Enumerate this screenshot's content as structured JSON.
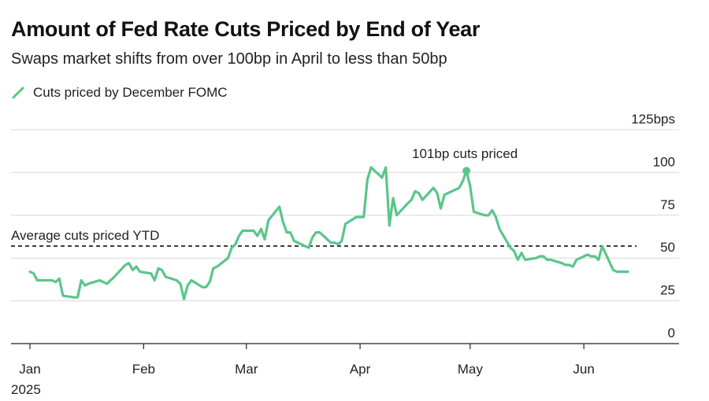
{
  "chart_data": {
    "type": "line",
    "title": "Amount of Fed Rate Cuts Priced by End of Year",
    "subtitle": "Swaps market shifts from over 100bp in April to less than 50bp",
    "xlabel": "",
    "ylabel": "",
    "ylim": [
      0,
      125
    ],
    "y_ticks": [
      0,
      25,
      50,
      75,
      100,
      125
    ],
    "y_tick_labels": [
      "0",
      "25",
      "50",
      "75",
      "100",
      "125bps"
    ],
    "x_ticks": [
      {
        "date": "2025-01-01",
        "label": "Jan"
      },
      {
        "date": "2025-02-01",
        "label": "Feb"
      },
      {
        "date": "2025-03-01",
        "label": "Mar"
      },
      {
        "date": "2025-04-01",
        "label": "Apr"
      },
      {
        "date": "2025-05-01",
        "label": "May"
      },
      {
        "date": "2025-06-01",
        "label": "Jun"
      }
    ],
    "year_label": "2025",
    "series": [
      {
        "name": "Cuts priced by December FOMC",
        "color": "#5cc58a",
        "points": [
          [
            "2025-01-01",
            42
          ],
          [
            "2025-01-02",
            41
          ],
          [
            "2025-01-03",
            37
          ],
          [
            "2025-01-06",
            37
          ],
          [
            "2025-01-07",
            37
          ],
          [
            "2025-01-08",
            36
          ],
          [
            "2025-01-09",
            38
          ],
          [
            "2025-01-10",
            28
          ],
          [
            "2025-01-13",
            27
          ],
          [
            "2025-01-14",
            27
          ],
          [
            "2025-01-15",
            37
          ],
          [
            "2025-01-16",
            34
          ],
          [
            "2025-01-17",
            35
          ],
          [
            "2025-01-20",
            37
          ],
          [
            "2025-01-21",
            36
          ],
          [
            "2025-01-22",
            35
          ],
          [
            "2025-01-23",
            37
          ],
          [
            "2025-01-24",
            39
          ],
          [
            "2025-01-27",
            46
          ],
          [
            "2025-01-28",
            47
          ],
          [
            "2025-01-29",
            43
          ],
          [
            "2025-01-30",
            45
          ],
          [
            "2025-01-31",
            42
          ],
          [
            "2025-02-03",
            41
          ],
          [
            "2025-02-04",
            37
          ],
          [
            "2025-02-05",
            44
          ],
          [
            "2025-02-06",
            43
          ],
          [
            "2025-02-07",
            39
          ],
          [
            "2025-02-10",
            37
          ],
          [
            "2025-02-11",
            35
          ],
          [
            "2025-02-12",
            26
          ],
          [
            "2025-02-13",
            34
          ],
          [
            "2025-02-14",
            37
          ],
          [
            "2025-02-17",
            33
          ],
          [
            "2025-02-18",
            33
          ],
          [
            "2025-02-19",
            36
          ],
          [
            "2025-02-20",
            44
          ],
          [
            "2025-02-21",
            45
          ],
          [
            "2025-02-24",
            50
          ],
          [
            "2025-02-25",
            56
          ],
          [
            "2025-02-26",
            58
          ],
          [
            "2025-02-27",
            63
          ],
          [
            "2025-02-28",
            66
          ],
          [
            "2025-03-03",
            66
          ],
          [
            "2025-03-04",
            63
          ],
          [
            "2025-03-05",
            67
          ],
          [
            "2025-03-06",
            61
          ],
          [
            "2025-03-07",
            72
          ],
          [
            "2025-03-10",
            80
          ],
          [
            "2025-03-11",
            71
          ],
          [
            "2025-03-12",
            65
          ],
          [
            "2025-03-13",
            65
          ],
          [
            "2025-03-14",
            60
          ],
          [
            "2025-03-17",
            57
          ],
          [
            "2025-03-18",
            56
          ],
          [
            "2025-03-19",
            62
          ],
          [
            "2025-03-20",
            65
          ],
          [
            "2025-03-21",
            65
          ],
          [
            "2025-03-24",
            59
          ],
          [
            "2025-03-25",
            59
          ],
          [
            "2025-03-26",
            58
          ],
          [
            "2025-03-27",
            60
          ],
          [
            "2025-03-28",
            70
          ],
          [
            "2025-03-31",
            74
          ],
          [
            "2025-04-01",
            74
          ],
          [
            "2025-04-02",
            74
          ],
          [
            "2025-04-03",
            96
          ],
          [
            "2025-04-04",
            103
          ],
          [
            "2025-04-07",
            97
          ],
          [
            "2025-04-08",
            103
          ],
          [
            "2025-04-09",
            69
          ],
          [
            "2025-04-10",
            85
          ],
          [
            "2025-04-11",
            75
          ],
          [
            "2025-04-14",
            82
          ],
          [
            "2025-04-15",
            84
          ],
          [
            "2025-04-16",
            89
          ],
          [
            "2025-04-17",
            88
          ],
          [
            "2025-04-18",
            84
          ],
          [
            "2025-04-21",
            91
          ],
          [
            "2025-04-22",
            88
          ],
          [
            "2025-04-23",
            79
          ],
          [
            "2025-04-24",
            87
          ],
          [
            "2025-04-25",
            88
          ],
          [
            "2025-04-28",
            91
          ],
          [
            "2025-04-29",
            95
          ],
          [
            "2025-04-30",
            101
          ],
          [
            "2025-05-01",
            92
          ],
          [
            "2025-05-02",
            77
          ],
          [
            "2025-05-05",
            75
          ],
          [
            "2025-05-06",
            75
          ],
          [
            "2025-05-07",
            78
          ],
          [
            "2025-05-08",
            74
          ],
          [
            "2025-05-09",
            67
          ],
          [
            "2025-05-12",
            56
          ],
          [
            "2025-05-13",
            54
          ],
          [
            "2025-05-14",
            49
          ],
          [
            "2025-05-15",
            53
          ],
          [
            "2025-05-16",
            49
          ],
          [
            "2025-05-19",
            50
          ],
          [
            "2025-05-20",
            51
          ],
          [
            "2025-05-21",
            51
          ],
          [
            "2025-05-22",
            49
          ],
          [
            "2025-05-23",
            49
          ],
          [
            "2025-05-26",
            47
          ],
          [
            "2025-05-27",
            46
          ],
          [
            "2025-05-28",
            46
          ],
          [
            "2025-05-29",
            45
          ],
          [
            "2025-05-30",
            49
          ],
          [
            "2025-06-02",
            52
          ],
          [
            "2025-06-03",
            51
          ],
          [
            "2025-06-04",
            51
          ],
          [
            "2025-06-05",
            49
          ],
          [
            "2025-06-06",
            57
          ],
          [
            "2025-06-09",
            43
          ],
          [
            "2025-06-10",
            42
          ],
          [
            "2025-06-11",
            42
          ],
          [
            "2025-06-12",
            42
          ],
          [
            "2025-06-13",
            42
          ]
        ]
      }
    ],
    "average_line": {
      "value": 57,
      "label": "Average cuts priced YTD",
      "color": "#111111"
    },
    "annotation": {
      "date": "2025-04-30",
      "value": 101,
      "text": "101bp cuts priced"
    },
    "legend": {
      "label": "Cuts priced by December FOMC",
      "position": "top-left"
    },
    "grid": true
  }
}
